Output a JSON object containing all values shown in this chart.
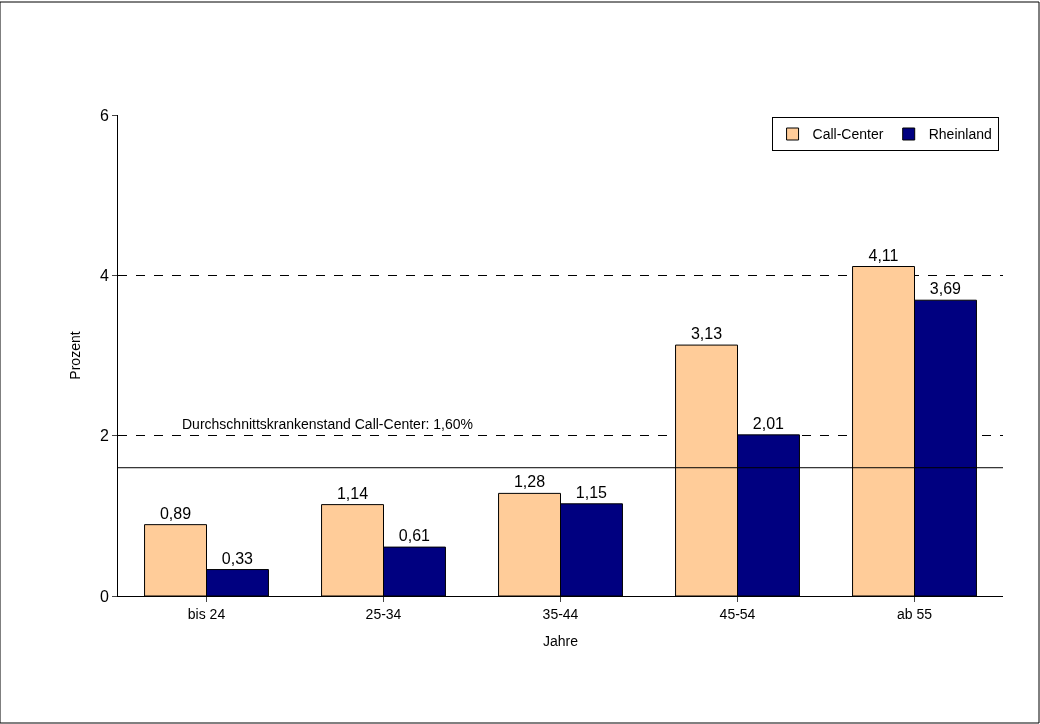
{
  "chart_data": {
    "type": "bar",
    "xlabel": "Jahre",
    "ylabel": "Prozent",
    "categories": [
      "bis 24",
      "25-34",
      "35-44",
      "45-54",
      "ab 55"
    ],
    "series": [
      {
        "name": "Call-Center",
        "color": "#ffcc99",
        "values": [
          0.89,
          1.14,
          1.28,
          3.13,
          4.11
        ],
        "value_labels": [
          "0,89",
          "1,14",
          "1,28",
          "3,13",
          "4,11"
        ]
      },
      {
        "name": "Rheinland",
        "color": "#000080",
        "values": [
          0.33,
          0.61,
          1.15,
          2.01,
          3.69
        ],
        "value_labels": [
          "0,33",
          "0,61",
          "1,15",
          "2,01",
          "3,69"
        ]
      }
    ],
    "ylim": [
      0,
      6
    ],
    "yticks": [
      0,
      2,
      4,
      6
    ],
    "grid": "y",
    "legend": "top right",
    "ref_lines": [
      {
        "axis": "y",
        "value": 1.6,
        "label": "Durchschnittskrankenstand Call-Center: 1,60%",
        "color": "#000000",
        "line_style": "solid"
      }
    ]
  }
}
